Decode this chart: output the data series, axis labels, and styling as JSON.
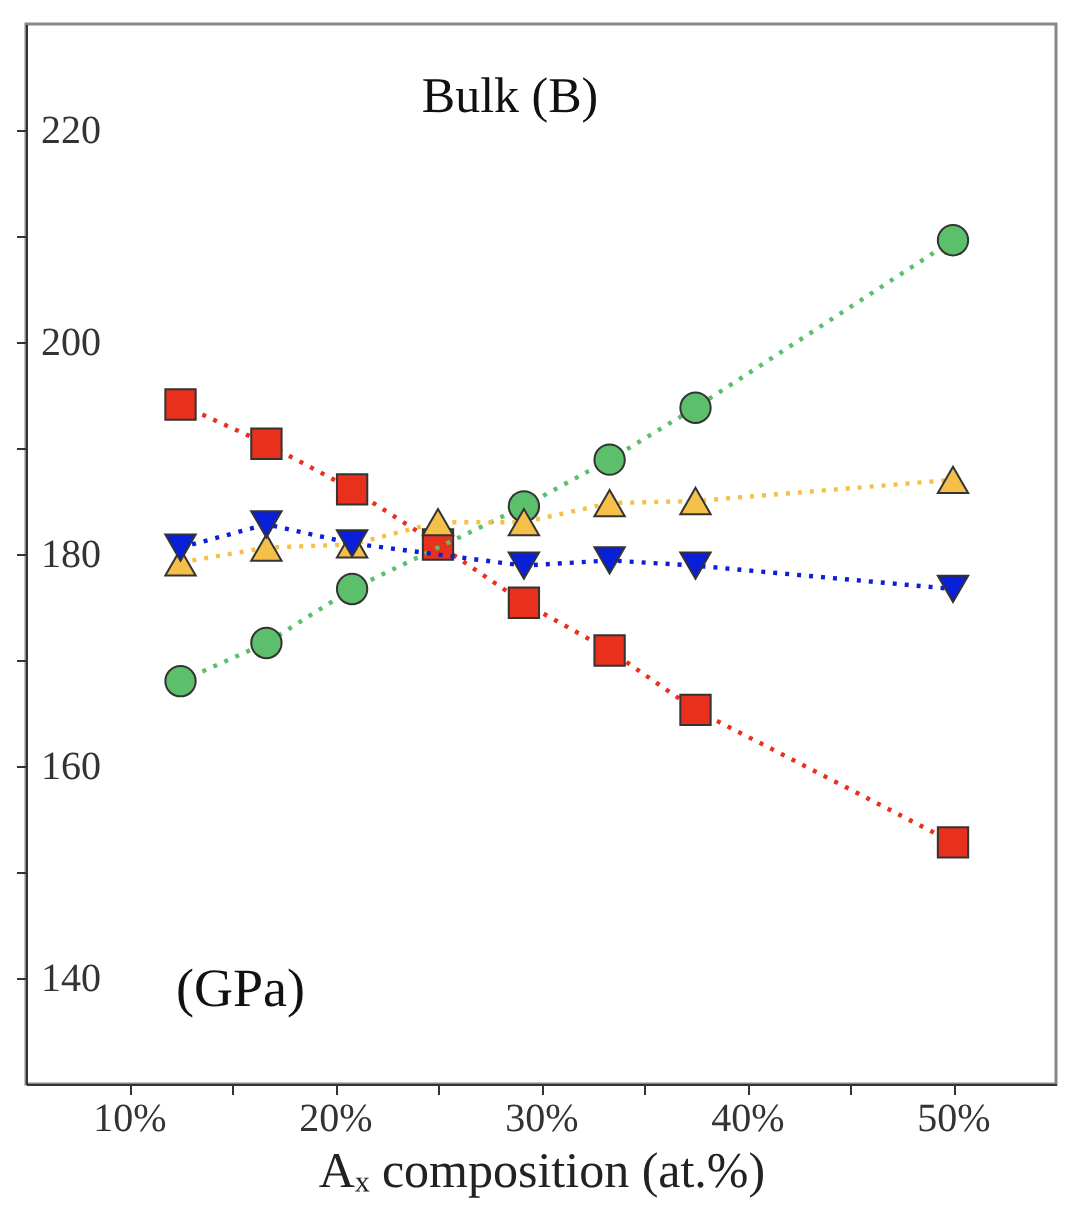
{
  "chart_data": {
    "type": "line",
    "title": "Bulk (B)",
    "xlabel": "Aₓ composition (at.%)",
    "annotations": [
      "(GPa)"
    ],
    "x": [
      12.5,
      16.67,
      20.83,
      25,
      29.17,
      33.33,
      37.5,
      50
    ],
    "series": [
      {
        "color": "#e8301c",
        "marker": "square",
        "values": [
          194.1,
          190.4,
          186.1,
          180.9,
          175.4,
          170.9,
          165.3,
          152.8
        ]
      },
      {
        "color": "#5cbf6b",
        "marker": "circle",
        "values": [
          168.0,
          171.6,
          176.7,
          null,
          184.5,
          188.9,
          193.8,
          209.6
        ]
      },
      {
        "color": "#f5c04a",
        "marker": "triangle",
        "values": [
          179.2,
          180.6,
          180.9,
          183.0,
          183.0,
          184.8,
          185.0,
          187.0
        ]
      },
      {
        "color": "#0a1fd8",
        "marker": "triangle-down",
        "values": [
          180.6,
          182.8,
          181.0,
          null,
          178.9,
          179.4,
          178.9,
          176.7
        ]
      }
    ],
    "line_style": "dotted",
    "grid": false,
    "xlim": [
      5,
      55
    ],
    "xticks": [
      {
        "value": 10,
        "label": "10%"
      },
      {
        "value": 15,
        "label": null
      },
      {
        "value": 20,
        "label": "20%"
      },
      {
        "value": 25,
        "label": null
      },
      {
        "value": 30,
        "label": "30%"
      },
      {
        "value": 35,
        "label": null
      },
      {
        "value": 40,
        "label": "40%"
      },
      {
        "value": 45,
        "label": null
      },
      {
        "value": 50,
        "label": "50%"
      }
    ],
    "ylim": [
      130,
      230
    ],
    "yticks": [
      {
        "value": 140,
        "label": "140"
      },
      {
        "value": 150,
        "label": null
      },
      {
        "value": 160,
        "label": "160"
      },
      {
        "value": 170,
        "label": null
      },
      {
        "value": 180,
        "label": "180"
      },
      {
        "value": 190,
        "label": null
      },
      {
        "value": 200,
        "label": "200"
      },
      {
        "value": 210,
        "label": null
      },
      {
        "value": 220,
        "label": "220"
      }
    ]
  }
}
